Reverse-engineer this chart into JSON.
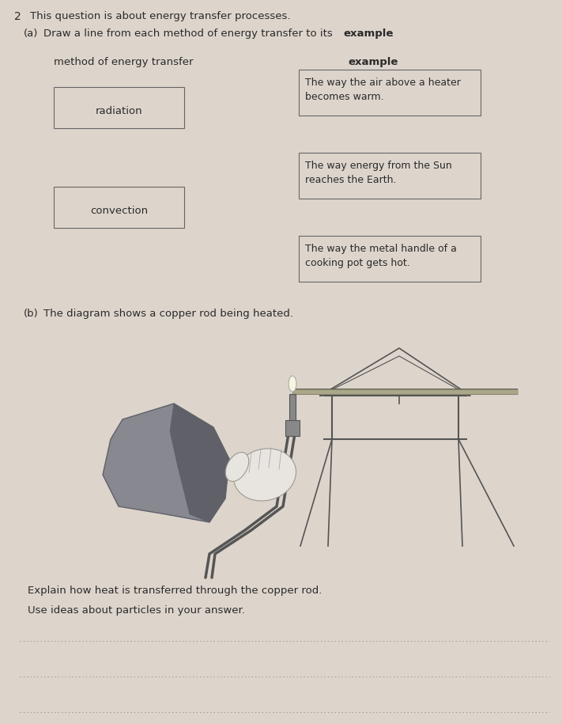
{
  "bg_color": "#ddd5cc",
  "question_num": "2",
  "question_text": "This question is about energy transfer processes.",
  "part_a_label": "(a)",
  "part_a_text": "Draw a line from each method of energy transfer to its ​",
  "part_a_bold": "example",
  "col_left_header": "method of energy transfer",
  "col_right_header": "example",
  "left_boxes": [
    "radiation",
    "convection"
  ],
  "right_boxes": [
    "The way the air above a heater\nbecomes warm.",
    "The way energy from the Sun\nreaches the Earth.",
    "The way the metal handle of a\ncooking pot gets hot."
  ],
  "part_b_label": "(b)",
  "part_b_text": "The diagram shows a copper rod being heated.",
  "explain_line1": "Explain how heat is transferred through the copper rod.",
  "explain_line2": "Use ideas about particles in your answer.",
  "font_color": "#2a2a2a",
  "box_edge_color": "#666666",
  "dark_color": "#555555",
  "hand_color": "#d8d0c8",
  "sleeve_color": "#888890",
  "sleeve_dark": "#606068"
}
